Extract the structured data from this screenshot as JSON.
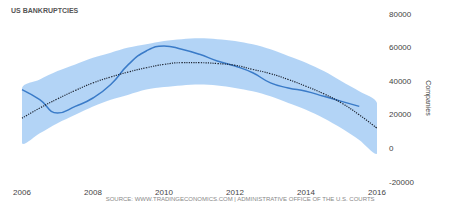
{
  "chart_data": {
    "type": "line",
    "title": "US BANKRUPTCIES",
    "source": "SOURCE: WWW.TRADINGECONOMICS.COM | ADMINISTRATIVE OFFICE OF THE U.S. COURTS",
    "ylabel": "Companies",
    "x": [
      2006,
      2006.5,
      2007,
      2007.5,
      2008,
      2008.5,
      2009,
      2009.5,
      2010,
      2010.5,
      2011,
      2011.5,
      2012,
      2012.5,
      2013,
      2013.5,
      2014,
      2014.5,
      2015,
      2015.5,
      2016
    ],
    "series": [
      {
        "color": "#3a7bc8",
        "line_style": "solid",
        "values": [
          35000,
          29000,
          21000,
          25000,
          30000,
          38000,
          50000,
          58000,
          61000,
          59000,
          56000,
          52000,
          49000,
          45000,
          39000,
          36000,
          34000,
          31000,
          28000,
          25000,
          null
        ]
      },
      {
        "color": "#1c2330",
        "line_style": "dotted",
        "values": [
          18000,
          24000,
          29500,
          34500,
          39000,
          42500,
          45500,
          48000,
          50000,
          51000,
          51000,
          50500,
          49500,
          47000,
          44500,
          41000,
          37000,
          32500,
          27000,
          20000,
          12000
        ]
      }
    ],
    "band": {
      "color": "#a6cdf4",
      "upper": [
        36000,
        41000,
        46000,
        50000,
        54000,
        57000,
        60000,
        62000,
        64000,
        65000,
        65500,
        65000,
        64000,
        62000,
        59000,
        55000,
        51000,
        46000,
        40000,
        34000,
        27000
      ],
      "lower": [
        3000,
        9000,
        15000,
        20000,
        25000,
        29000,
        32000,
        35000,
        36500,
        37500,
        38000,
        37500,
        36000,
        34000,
        31000,
        27000,
        23000,
        18000,
        12000,
        5000,
        -3000
      ]
    },
    "xlim": [
      2006,
      2016
    ],
    "xticks": [
      2006,
      2008,
      2010,
      2012,
      2014,
      2016
    ],
    "ylim": [
      -20000,
      80000
    ],
    "yticks": [
      -20000,
      0,
      20000,
      40000,
      60000,
      80000
    ],
    "grid": false
  }
}
